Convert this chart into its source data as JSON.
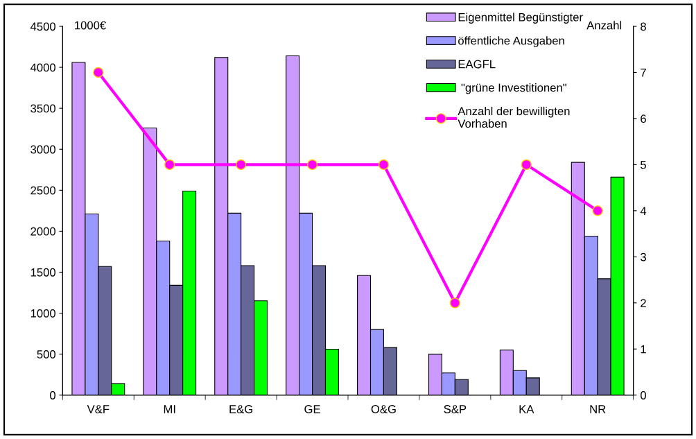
{
  "chart_data": {
    "type": "bar",
    "categories": [
      "V&F",
      "MI",
      "E&G",
      "GE",
      "O&G",
      "S&P",
      "KA",
      "NR"
    ],
    "ylabel": "1000€",
    "y2label": "Anzahl",
    "ylim": [
      0,
      4500
    ],
    "yticks": [
      0,
      500,
      1000,
      1500,
      2000,
      2500,
      3000,
      3500,
      4000,
      4500
    ],
    "y2lim": [
      0,
      8
    ],
    "y2ticks": [
      0,
      1,
      2,
      3,
      4,
      5,
      6,
      7,
      8
    ],
    "grid": false,
    "legend": "top right",
    "marker": "circle",
    "line_style": "solid",
    "series": [
      {
        "name": "Eigenmittel Begünstigter",
        "color": "#cc99ff",
        "values": [
          4060,
          3260,
          4120,
          4140,
          1460,
          500,
          550,
          2840
        ]
      },
      {
        "name": "öffentliche Ausgaben",
        "color": "#9999ff",
        "values": [
          2210,
          1880,
          2220,
          2220,
          800,
          270,
          300,
          1940
        ]
      },
      {
        "name": "EAGFL",
        "color": "#666699",
        "values": [
          1570,
          1340,
          1580,
          1580,
          580,
          190,
          210,
          1420
        ]
      },
      {
        "name": " \"grüne Investitionen\"",
        "color": "#00ff00",
        "values": [
          140,
          2490,
          1150,
          560,
          null,
          null,
          null,
          2660
        ]
      },
      {
        "name": "Anzahl der bewilligten\nVorhaben",
        "type": "line",
        "axis": "y2",
        "color": "#ff00ff",
        "values": [
          7,
          5,
          5,
          5,
          5,
          2,
          5,
          4
        ]
      }
    ]
  }
}
